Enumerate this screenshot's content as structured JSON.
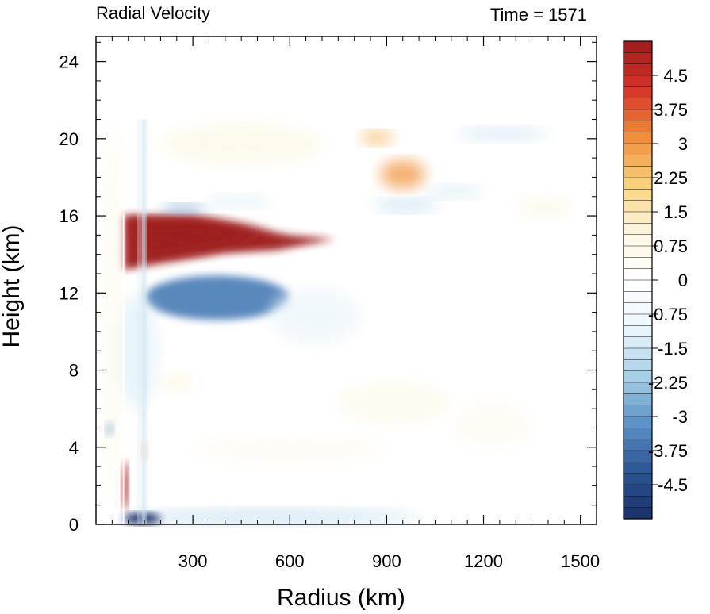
{
  "chart_data": {
    "type": "heatmap",
    "title_left": "Radial Velocity",
    "title_right": "Time = 1571",
    "xlabel": "Radius (km)",
    "ylabel": "Height (km)",
    "xlim": [
      0,
      1550
    ],
    "ylim": [
      0,
      25.3
    ],
    "xticks": [
      300,
      600,
      900,
      1200,
      1500
    ],
    "yticks": [
      0,
      4,
      8,
      12,
      16,
      20,
      24
    ],
    "colorbar": {
      "min": -5.25,
      "max": 5.25,
      "step": 0.25,
      "labels": [
        "4.5",
        "3.75",
        "3",
        "2.25",
        "1.5",
        "0.75",
        "0",
        "-0.75",
        "-1.5",
        "-2.25",
        "-3",
        "-3.75",
        "-4.5"
      ],
      "colors": [
        "#1a2f69",
        "#2d5596",
        "#5b92c7",
        "#a9d0e6",
        "#ecf6fb",
        "#ffffff",
        "#fdf7e3",
        "#f8d27b",
        "#f08c3a",
        "#d73327",
        "#9e1b1e"
      ]
    },
    "features": [
      {
        "r0": 85,
        "r1": 740,
        "z0": 13.2,
        "z1": 16.1,
        "v": 5.5,
        "shape": "wedge"
      },
      {
        "r0": 150,
        "r1": 600,
        "z0": 10.6,
        "z1": 12.9,
        "v": -3.5
      },
      {
        "r0": 540,
        "r1": 820,
        "z0": 9.3,
        "z1": 12.3,
        "v": -1.0
      },
      {
        "r0": 80,
        "r1": 1000,
        "z0": 0,
        "z1": 0.8,
        "v": -1.6
      },
      {
        "r0": 85,
        "r1": 200,
        "z0": 0,
        "z1": 0.6,
        "v": -5.5
      },
      {
        "r0": 80,
        "r1": 100,
        "z0": 0.7,
        "z1": 3.3,
        "v": 5.0
      },
      {
        "r0": 140,
        "r1": 160,
        "z0": 3.4,
        "z1": 4.2,
        "v": 3.0
      },
      {
        "r0": 30,
        "r1": 55,
        "z0": 4.6,
        "z1": 5.3,
        "v": -3.2
      },
      {
        "r0": 200,
        "r1": 340,
        "z0": 16.1,
        "z1": 16.6,
        "v": -2.8
      },
      {
        "r0": 340,
        "r1": 540,
        "z0": 16.4,
        "z1": 17.1,
        "v": -1.2
      },
      {
        "r0": 880,
        "r1": 1020,
        "z0": 17.4,
        "z1": 18.9,
        "v": 3.0
      },
      {
        "r0": 820,
        "r1": 920,
        "z0": 19.7,
        "z1": 20.4,
        "v": 2.5
      },
      {
        "r0": 860,
        "r1": 1060,
        "z0": 16.2,
        "z1": 16.9,
        "v": -1.6
      },
      {
        "r0": 1020,
        "r1": 1200,
        "z0": 16.9,
        "z1": 17.6,
        "v": -1.3
      },
      {
        "r0": 1120,
        "r1": 1400,
        "z0": 19.9,
        "z1": 20.6,
        "v": -1.4
      },
      {
        "r0": 1300,
        "r1": 1480,
        "z0": 15.9,
        "z1": 17.0,
        "v": 0.9
      },
      {
        "r0": 200,
        "r1": 700,
        "z0": 18.6,
        "z1": 20.8,
        "v": 0.9
      },
      {
        "r0": 750,
        "r1": 1100,
        "z0": 5.2,
        "z1": 7.4,
        "v": 0.8
      },
      {
        "r0": 1100,
        "r1": 1350,
        "z0": 4.0,
        "z1": 6.4,
        "v": 0.5
      },
      {
        "r0": 200,
        "r1": 300,
        "z0": 6.8,
        "z1": 7.8,
        "v": 1.0
      },
      {
        "r0": 300,
        "r1": 900,
        "z0": 3.2,
        "z1": 4.6,
        "v": 0.5
      },
      {
        "r0": 60,
        "r1": 190,
        "z0": 6.0,
        "z1": 12.0,
        "v": -1.2
      },
      {
        "r0": 20,
        "r1": 80,
        "z0": 1.0,
        "z1": 21.0,
        "v": 0.6
      }
    ]
  }
}
